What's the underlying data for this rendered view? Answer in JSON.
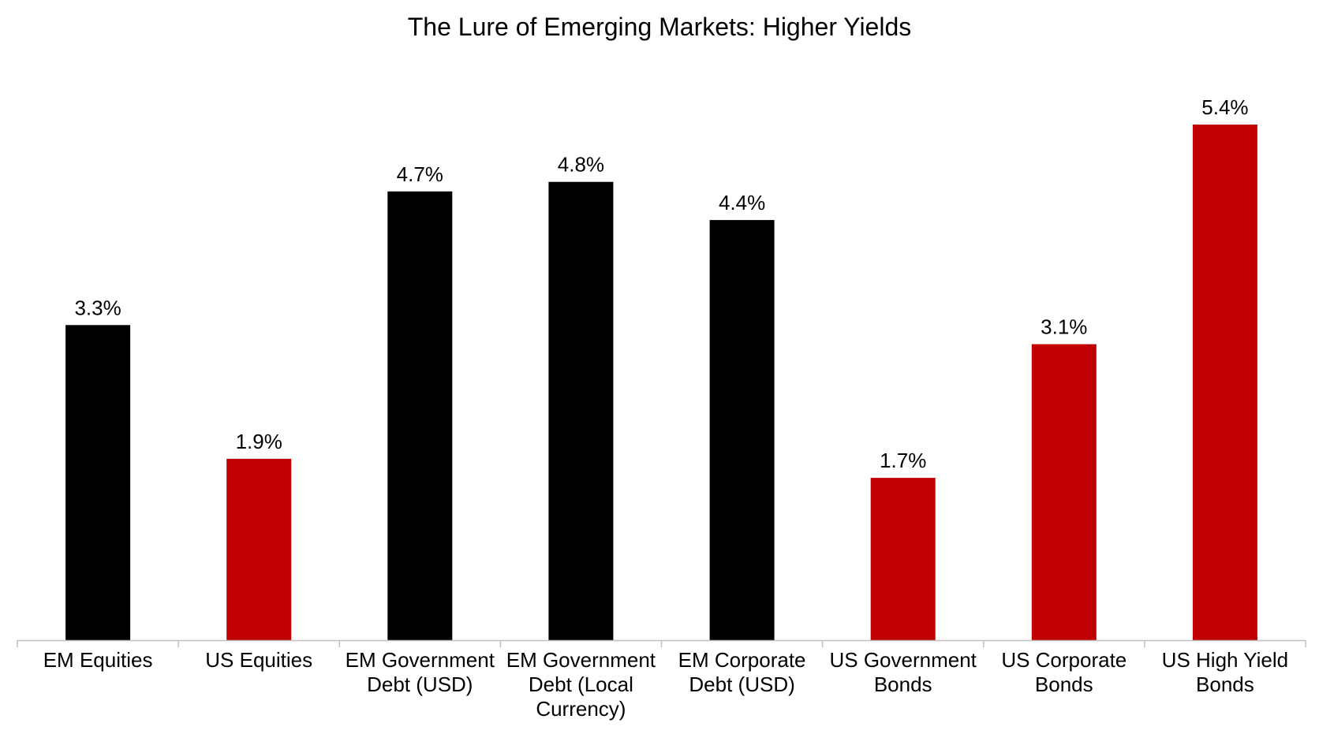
{
  "chart_data": {
    "type": "bar",
    "title": "The Lure of Emerging Markets: Higher Yields",
    "xlabel": "",
    "ylabel": "",
    "ylim": [
      0,
      5.4
    ],
    "grid": false,
    "legend": "none",
    "categories": [
      "EM Equities",
      "US Equities",
      "EM Government Debt (USD)",
      "EM Government Debt (Local Currency)",
      "EM Corporate Debt (USD)",
      "US Government Bonds",
      "US Corporate Bonds",
      "US High Yield Bonds"
    ],
    "category_lines": [
      [
        "EM Equities"
      ],
      [
        "US Equities"
      ],
      [
        "EM Government",
        "Debt (USD)"
      ],
      [
        "EM Government",
        "Debt (Local",
        "Currency)"
      ],
      [
        "EM Corporate",
        "Debt (USD)"
      ],
      [
        "US Government",
        "Bonds"
      ],
      [
        "US Corporate",
        "Bonds"
      ],
      [
        "US High Yield",
        "Bonds"
      ]
    ],
    "values": [
      3.3,
      1.9,
      4.7,
      4.8,
      4.4,
      1.7,
      3.1,
      5.4
    ],
    "data_labels": [
      "3.3%",
      "1.9%",
      "4.7%",
      "4.8%",
      "4.4%",
      "1.7%",
      "3.1%",
      "5.4%"
    ],
    "colors": [
      "#000000",
      "#c00000",
      "#000000",
      "#000000",
      "#000000",
      "#c00000",
      "#c00000",
      "#c00000"
    ]
  }
}
